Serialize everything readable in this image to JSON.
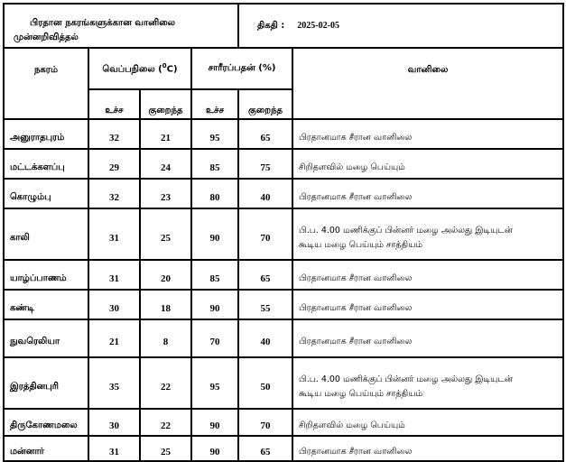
{
  "header": {
    "title_line1": "பிரதான நகரங்களுக்கான வானிலை",
    "title_line2": "முன்னறிவித்தல்",
    "date_label": "திகதி :",
    "date_value": "2025-02-05"
  },
  "columns": {
    "city": "நகரம்",
    "temperature": "வெப்பநிலை (",
    "temp_sup": "0",
    "temp_unit": "C)",
    "humidity": "சாரீரப்பதன் (%)",
    "weather": "வானிலை",
    "high": "உச்ச",
    "low": "குறைந்த"
  },
  "rows": [
    {
      "city": "அனுராதபுரம்",
      "t_high": "32",
      "t_low": "21",
      "h_high": "95",
      "h_low": "65",
      "weather": "பிரதானமாக சீரான வானிலை"
    },
    {
      "city": "மட்டக்களப்பு",
      "t_high": "29",
      "t_low": "24",
      "h_high": "85",
      "h_low": "75",
      "weather": "சிறிதளவில் மழை பெய்யும்"
    },
    {
      "city": "கொழும்பு",
      "t_high": "32",
      "t_low": "23",
      "h_high": "80",
      "h_low": "40",
      "weather": "பிரதானமாக சீரான வானிலை"
    },
    {
      "city": "காலி",
      "t_high": "31",
      "t_low": "25",
      "h_high": "90",
      "h_low": "70",
      "weather": "பி.ப. 4.00 மணிக்குப் பின்னர் மழை அல்லது இடியுடன் கூடிய மழை பெய்யும் சாத்தியம்"
    },
    {
      "city": "யாழ்ப்பாணம்",
      "t_high": "31",
      "t_low": "20",
      "h_high": "85",
      "h_low": "65",
      "weather": "பிரதானமாக சீரான வானிலை"
    },
    {
      "city": "கண்டி",
      "t_high": "30",
      "t_low": "18",
      "h_high": "90",
      "h_low": "55",
      "weather": "பிரதானமாக சீரான வானிலை"
    },
    {
      "city": "நுவரெலியா",
      "t_high": "21",
      "t_low": "8",
      "h_high": "70",
      "h_low": "40",
      "weather": "பிரதானமாக சீரான வானிலை"
    },
    {
      "city": "இரத்தினபுரி",
      "t_high": "35",
      "t_low": "22",
      "h_high": "95",
      "h_low": "50",
      "weather": "பி.ப. 4.00 மணிக்குப் பின்னர் மழை அல்லது இடியுடன் கூடிய மழை பெய்யும் சாத்தியம்"
    },
    {
      "city": "திருகோணமலை",
      "t_high": "30",
      "t_low": "22",
      "h_high": "90",
      "h_low": "70",
      "weather": "சிறிதளவில் மழை பெய்யும்"
    },
    {
      "city": "மன்னார்",
      "t_high": "31",
      "t_low": "25",
      "h_high": "90",
      "h_low": "65",
      "weather": "பிரதானமாக சீரான வானிலை"
    }
  ]
}
